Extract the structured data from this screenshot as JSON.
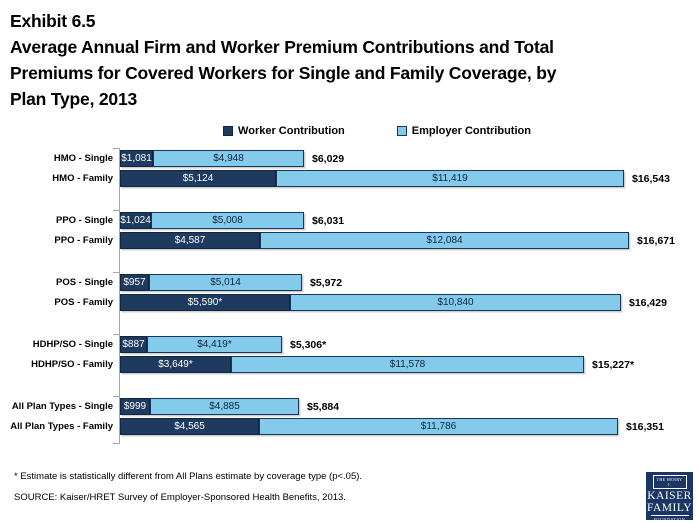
{
  "header": {
    "exhibit": "Exhibit 6.5",
    "title_lines": [
      "Average Annual Firm and Worker Premium Contributions and Total",
      "Premiums for Covered Workers for Single and Family Coverage, by",
      "Plan Type, 2013"
    ]
  },
  "legend": {
    "worker": "Worker Contribution",
    "employer": "Employer Contribution"
  },
  "chart_data": {
    "type": "bar",
    "orientation": "horizontal",
    "stacked": true,
    "title": "Average Annual Firm and Worker Premium Contributions and Total Premiums for Covered Workers for Single and Family Coverage, by Plan Type, 2013",
    "xlabel": "",
    "ylabel": "",
    "xlim": [
      0,
      17500
    ],
    "grid": false,
    "legend_position": "top-center",
    "categories": [
      "HMO - Single",
      "HMO - Family",
      "PPO - Single",
      "PPO - Family",
      "POS - Single",
      "POS - Family",
      "HDHP/SO - Single",
      "HDHP/SO - Family",
      "All Plan Types - Single",
      "All Plan Types - Family"
    ],
    "series": [
      {
        "name": "Worker Contribution",
        "color": "#1E3A5E",
        "values": [
          1081,
          5124,
          1024,
          4587,
          957,
          5590,
          887,
          3649,
          999,
          4565
        ]
      },
      {
        "name": "Employer Contribution",
        "color": "#84CAEA",
        "values": [
          4948,
          11419,
          5008,
          12084,
          5014,
          10840,
          4419,
          11578,
          4885,
          11786
        ]
      }
    ],
    "totals": [
      6029,
      16543,
      6031,
      16671,
      5972,
      16429,
      5306,
      15227,
      5884,
      16351
    ],
    "rows": [
      {
        "category": "HMO - Single",
        "worker": 1081,
        "employer": 4948,
        "worker_label": "$1,081",
        "employer_label": "$4,948",
        "total_label": "$6,029"
      },
      {
        "category": "HMO - Family",
        "worker": 5124,
        "employer": 11419,
        "worker_label": "$5,124",
        "employer_label": "$11,419",
        "total_label": "$16,543"
      },
      {
        "category": "PPO - Single",
        "worker": 1024,
        "employer": 5008,
        "worker_label": "$1,024",
        "employer_label": "$5,008",
        "total_label": "$6,031"
      },
      {
        "category": "PPO - Family",
        "worker": 4587,
        "employer": 12084,
        "worker_label": "$4,587",
        "employer_label": "$12,084",
        "total_label": "$16,671"
      },
      {
        "category": "POS - Single",
        "worker": 957,
        "employer": 5014,
        "worker_label": "$957",
        "employer_label": "$5,014",
        "total_label": "$5,972"
      },
      {
        "category": "POS - Family",
        "worker": 5590,
        "employer": 10840,
        "worker_label": "$5,590*",
        "employer_label": "$10,840",
        "total_label": "$16,429"
      },
      {
        "category": "HDHP/SO - Single",
        "worker": 887,
        "employer": 4419,
        "worker_label": "$887",
        "employer_label": "$4,419*",
        "total_label": "$5,306*"
      },
      {
        "category": "HDHP/SO - Family",
        "worker": 3649,
        "employer": 11578,
        "worker_label": "$3,649*",
        "employer_label": "$11,578",
        "total_label": "$15,227*"
      },
      {
        "category": "All Plan Types - Single",
        "worker": 999,
        "employer": 4885,
        "worker_label": "$999",
        "employer_label": "$4,885",
        "total_label": "$5,884"
      },
      {
        "category": "All Plan Types - Family",
        "worker": 4565,
        "employer": 11786,
        "worker_label": "$4,565",
        "employer_label": "$11,786",
        "total_label": "$16,351"
      }
    ]
  },
  "footer": {
    "note": "* Estimate is statistically different from All Plans estimate by coverage type (p<.05).",
    "source": "SOURCE:  Kaiser/HRET Survey of Employer-Sponsored Health Benefits, 2013."
  },
  "logo": {
    "line1": "THE HENRY J.",
    "line2": "KAISER",
    "line3": "FAMILY",
    "line4": "FOUNDATION"
  },
  "colors": {
    "worker_bar": "#1E3A5E",
    "employer_bar": "#84CAEA",
    "bar_border": "#17365D",
    "axis": "#A6A6A6",
    "logo_navy": "#1B3665"
  }
}
